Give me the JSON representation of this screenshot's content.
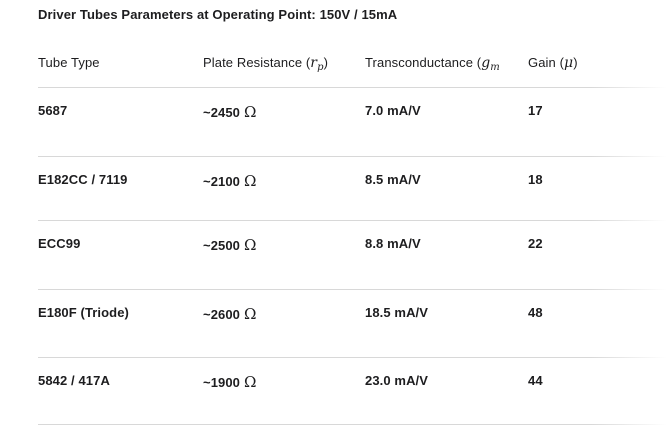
{
  "title": "Driver Tubes Parameters at Operating Point: 150V / 15mA",
  "header": {
    "col_tube": "Tube Type",
    "col_rp_prefix": "Plate Resistance (",
    "col_rp_math": "r",
    "col_rp_sub": "p",
    "col_rp_suffix": ")",
    "col_gm_prefix": "Transconductance (",
    "col_gm_math": "g",
    "col_gm_sub": "m",
    "col_gain_prefix": "Gain (",
    "col_gain_math": "μ",
    "col_gain_suffix": ")"
  },
  "rows": [
    {
      "tube": "5687",
      "rp": "~2450",
      "ohm": "Ω",
      "gm": "7.0 mA/V",
      "gain": "17"
    },
    {
      "tube": "E182CC / 7119",
      "rp": "~2100",
      "ohm": "Ω",
      "gm": "8.5 mA/V",
      "gain": "18"
    },
    {
      "tube": "ECC99",
      "rp": "~2500",
      "ohm": "Ω",
      "gm": "8.8 mA/V",
      "gain": "22"
    },
    {
      "tube": "E180F (Triode)",
      "rp": "~2600",
      "ohm": "Ω",
      "gm": "18.5 mA/V",
      "gain": "48"
    },
    {
      "tube": "5842 / 417A",
      "rp": "~1900",
      "ohm": "Ω",
      "gm": "23.0 mA/V",
      "gain": "44"
    }
  ],
  "colors": {
    "text": "#1d1d1f",
    "divider": "#d8d8d8",
    "background": "#ffffff"
  }
}
